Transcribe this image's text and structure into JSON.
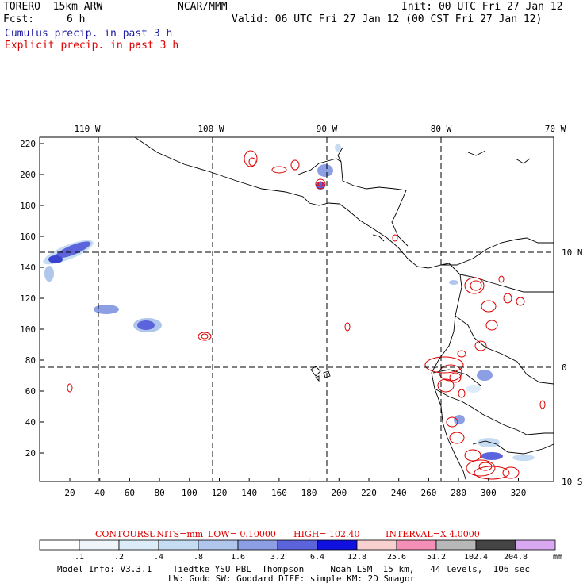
{
  "header": {
    "model": "TORERO  15km ARW",
    "org": "NCAR/MMM",
    "init": "Init: 00 UTC Fri 27 Jan 12",
    "fcst_label": "Fcst:",
    "fcst_value": "6 h",
    "valid": "Valid: 06 UTC Fri 27 Jan 12 (00 CST Fri 27 Jan 12)",
    "cumulus": "Cumulus precip. in past 3 h",
    "explicit": "Explicit precip. in past 3 h",
    "colors": {
      "cumulus": "#1a1aa0",
      "explicit": "#dd0000"
    }
  },
  "map": {
    "lon_labels": [
      "110 W",
      "100 W",
      "90 W",
      "80 W",
      "70 W"
    ],
    "lat_labels": [
      "10 N",
      "0",
      "10 S"
    ],
    "x_ticks": [
      "20",
      "40",
      "60",
      "80",
      "100",
      "120",
      "140",
      "160",
      "180",
      "200",
      "220",
      "240",
      "260",
      "280",
      "300",
      "320"
    ],
    "y_ticks": [
      "220",
      "200",
      "180",
      "160",
      "140",
      "120",
      "100",
      "80",
      "60",
      "40",
      "20"
    ]
  },
  "contour_info": {
    "contours": "CONTOURS:",
    "units": "UNITS=mm",
    "low": "LOW= 0.10000",
    "high": "HIGH= 102.40",
    "interval": "INTERVAL=X  4.0000",
    "color": "#dd0000"
  },
  "colorbar": {
    "labels": [
      ".1",
      ".2",
      ".4",
      ".8",
      "1.6",
      "3.2",
      "6.4",
      "12.8",
      "25.6",
      "51.2",
      "102.4",
      "204.8"
    ],
    "units": "mm",
    "colors": [
      "#ffffff",
      "#eef6fc",
      "#dcecf8",
      "#c6dcf2",
      "#b0c6ec",
      "#8c9ee4",
      "#5c64dc",
      "#1010e0",
      "#f8d0d0",
      "#f490b8",
      "#b8b8b8",
      "#444444",
      "#d8a8f0"
    ]
  },
  "footer": {
    "line1": "Model Info: V3.3.1    Tiedtke YSU PBL  Thompson     Noah LSM  15 km,   44 levels,  106 sec",
    "line2": "LW: Godd SW: Goddard DIFF: simple KM: 2D Smagor"
  }
}
